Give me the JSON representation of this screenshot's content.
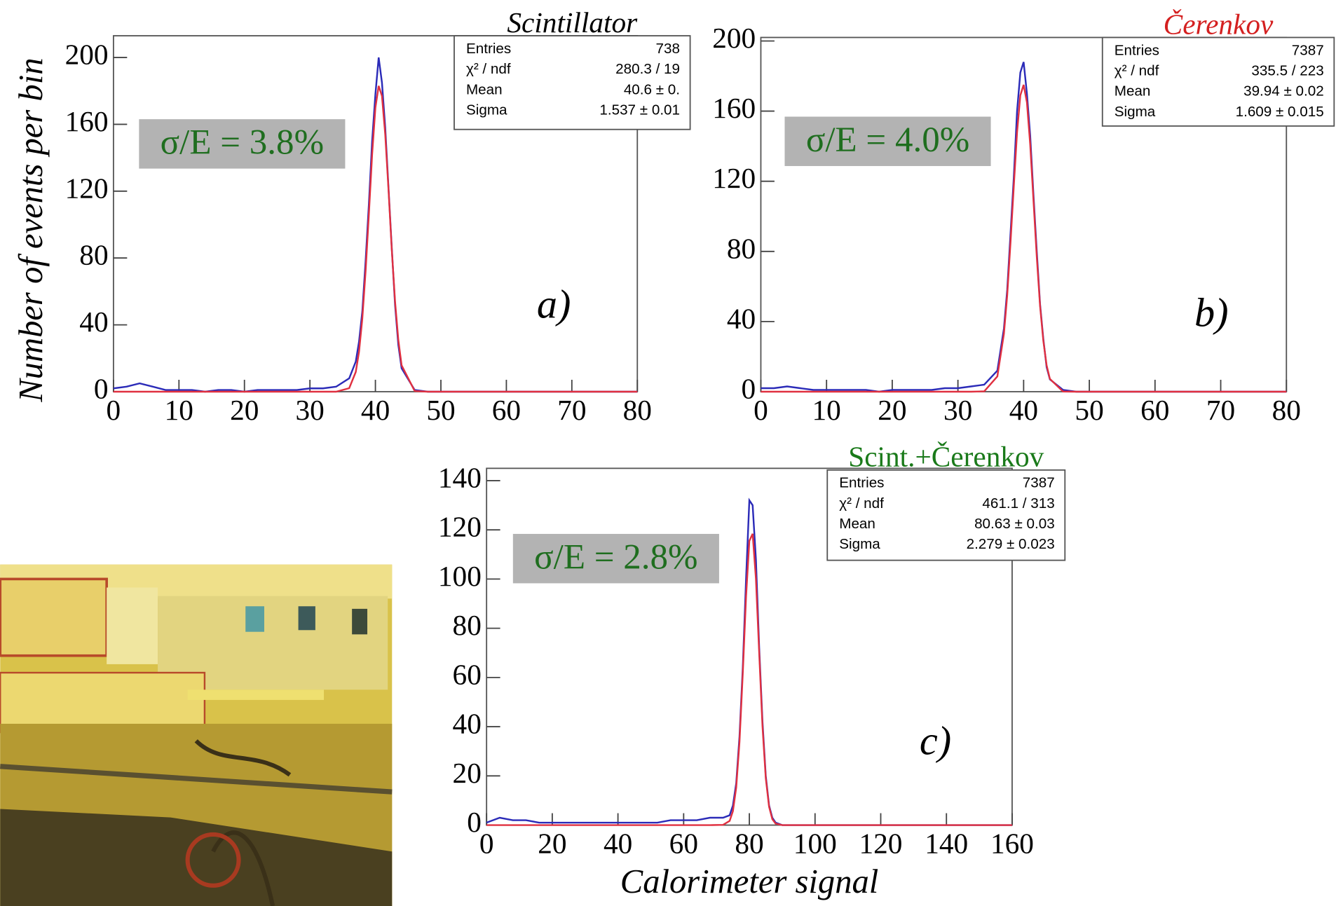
{
  "chart_data": [
    {
      "type": "line",
      "title": "Scintillator",
      "title_color": "#000000",
      "ylabel": "Number of events per bin",
      "annotation": "σ/E = 3.8%",
      "panel_label": "a)",
      "stats": [
        [
          "Entries",
          "738"
        ],
        [
          "χ² / ndf",
          "280.3 / 19"
        ],
        [
          "Mean",
          "40.6 ± 0."
        ],
        [
          "Sigma",
          "1.537 ± 0.01"
        ]
      ],
      "x": [
        0,
        2,
        4,
        6,
        8,
        10,
        12,
        14,
        16,
        18,
        20,
        22,
        24,
        26,
        28,
        30,
        32,
        34,
        36,
        37,
        37.5,
        38,
        38.5,
        39,
        39.5,
        40,
        40.5,
        41,
        41.5,
        42,
        42.5,
        43,
        43.5,
        44,
        46,
        48,
        50,
        52,
        54,
        56,
        58,
        60,
        62,
        64,
        66,
        68,
        70,
        72,
        74,
        76,
        78,
        80
      ],
      "series": [
        {
          "color": "#2b2bb8",
          "values": [
            2,
            3,
            5,
            3,
            1,
            1,
            1,
            0,
            1,
            1,
            0,
            1,
            1,
            1,
            1,
            2,
            2,
            3,
            8,
            18,
            30,
            48,
            78,
            112,
            150,
            178,
            200,
            185,
            158,
            122,
            86,
            52,
            28,
            14,
            1,
            0,
            0,
            0,
            0,
            0,
            0,
            0,
            0,
            0,
            0,
            0,
            0,
            0,
            0,
            0,
            0,
            0
          ]
        },
        {
          "color": "#e03040",
          "values": [
            0,
            0,
            0,
            0,
            0,
            0,
            0,
            0,
            0,
            0,
            0,
            0,
            0,
            0,
            0,
            0,
            0,
            0,
            2.1,
            11.8,
            23.9,
            43.7,
            72,
            106,
            142,
            170,
            183,
            177,
            154,
            121,
            85,
            54,
            31,
            15.8,
            0.4,
            0,
            0,
            0,
            0,
            0,
            0,
            0,
            0,
            0,
            0,
            0,
            0,
            0,
            0,
            0,
            0,
            0
          ]
        }
      ],
      "xlim": [
        0,
        80
      ],
      "ylim": [
        0,
        213
      ],
      "xticks": [
        0,
        10,
        20,
        30,
        40,
        50,
        60,
        70,
        80
      ],
      "yticks": [
        0,
        40,
        80,
        120,
        160,
        200
      ]
    },
    {
      "type": "line",
      "title": "Čerenkov",
      "title_color": "#d42020",
      "annotation": "σ/E = 4.0%",
      "panel_label": "b)",
      "stats": [
        [
          "Entries",
          "7387"
        ],
        [
          "χ² / ndf",
          "335.5 / 223"
        ],
        [
          "Mean",
          "39.94 ± 0.02"
        ],
        [
          "Sigma",
          "1.609 ± 0.015"
        ]
      ],
      "x": [
        0,
        2,
        4,
        6,
        8,
        10,
        12,
        14,
        16,
        18,
        20,
        22,
        24,
        26,
        28,
        30,
        32,
        34,
        36,
        37,
        37.5,
        38,
        38.5,
        39,
        39.5,
        40,
        40.5,
        41,
        41.5,
        42,
        42.5,
        43,
        43.5,
        44,
        46,
        48,
        50,
        52,
        54,
        56,
        58,
        60,
        62,
        64,
        66,
        68,
        70,
        72,
        74,
        76,
        78,
        80
      ],
      "series": [
        {
          "color": "#2b2bb8",
          "values": [
            2,
            2,
            3,
            2,
            1,
            1,
            1,
            1,
            1,
            0,
            1,
            1,
            1,
            1,
            2,
            2,
            3,
            4,
            12,
            36,
            58,
            90,
            122,
            160,
            182,
            188,
            170,
            146,
            112,
            80,
            50,
            30,
            14,
            7,
            1,
            0,
            0,
            0,
            0,
            0,
            0,
            0,
            0,
            0,
            0,
            0,
            0,
            0,
            0,
            0,
            0,
            0
          ]
        },
        {
          "color": "#e03040",
          "values": [
            0,
            0,
            0,
            0,
            0,
            0,
            0,
            0,
            0,
            0,
            0,
            0,
            0,
            0,
            0,
            0,
            0,
            0.2,
            8.7,
            33,
            55,
            85,
            117,
            148,
            169,
            175,
            165,
            141,
            109,
            77,
            49,
            29,
            15,
            7.3,
            0.1,
            0,
            0,
            0,
            0,
            0,
            0,
            0,
            0,
            0,
            0,
            0,
            0,
            0,
            0,
            0,
            0,
            0
          ]
        }
      ],
      "xlim": [
        0,
        80
      ],
      "ylim": [
        0,
        202
      ],
      "xticks": [
        0,
        10,
        20,
        30,
        40,
        50,
        60,
        70,
        80
      ],
      "yticks": [
        0,
        40,
        80,
        120,
        160,
        200
      ]
    },
    {
      "type": "line",
      "title": "Scint.+Čerenkov",
      "title_color": "#1a7a1a",
      "xlabel": "Calorimeter signal",
      "annotation": "σ/E = 2.8%",
      "panel_label": "c)",
      "stats": [
        [
          "Entries",
          "7387"
        ],
        [
          "χ² / ndf",
          "461.1 / 313"
        ],
        [
          "Mean",
          "80.63 ± 0.03"
        ],
        [
          "Sigma",
          "2.279 ± 0.023"
        ]
      ],
      "x": [
        0,
        4,
        8,
        12,
        16,
        20,
        24,
        28,
        32,
        36,
        40,
        44,
        48,
        52,
        56,
        60,
        64,
        68,
        72,
        74,
        75,
        76,
        77,
        78,
        79,
        80,
        81,
        82,
        83,
        84,
        85,
        86,
        87,
        88,
        90,
        95,
        100,
        105,
        110,
        115,
        120,
        125,
        130,
        135,
        140,
        145,
        150,
        155,
        160
      ],
      "series": [
        {
          "color": "#2b2bb8",
          "values": [
            1,
            3,
            2,
            2,
            1,
            1,
            1,
            1,
            1,
            1,
            1,
            1,
            1,
            1,
            2,
            2,
            2,
            3,
            3,
            4,
            8,
            17,
            36,
            64,
            100,
            132,
            130,
            108,
            72,
            42,
            20,
            8,
            3,
            1,
            0,
            0,
            0,
            0,
            0,
            0,
            0,
            0,
            0,
            0,
            0,
            0,
            0,
            0,
            0
          ]
        },
        {
          "color": "#e03040",
          "values": [
            0,
            0,
            0,
            0,
            0,
            0,
            0,
            0,
            0,
            0,
            0,
            0,
            0,
            0,
            0,
            0,
            0,
            0,
            0.1,
            1.7,
            5.7,
            15.3,
            33.8,
            61.7,
            92.9,
            115.5,
            118.4,
            100.2,
            69.9,
            40.2,
            19.1,
            7.5,
            2.4,
            0.6,
            0,
            0,
            0,
            0,
            0,
            0,
            0,
            0,
            0,
            0,
            0,
            0,
            0,
            0,
            0
          ]
        }
      ],
      "xlim": [
        0,
        160
      ],
      "ylim": [
        0,
        145
      ],
      "xticks": [
        0,
        20,
        40,
        60,
        80,
        100,
        120,
        140,
        160
      ],
      "yticks": [
        0,
        20,
        40,
        60,
        80,
        100,
        120,
        140
      ]
    }
  ]
}
